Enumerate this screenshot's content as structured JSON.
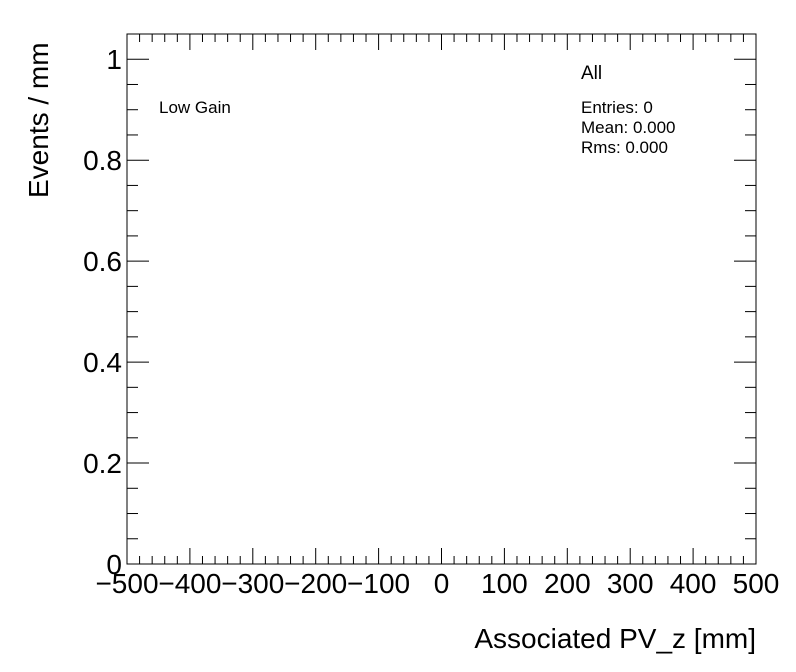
{
  "chart_data": {
    "type": "bar",
    "xlabel": "Associated PV_z [mm]",
    "ylabel": "Events / mm",
    "xlim": [
      -500,
      500
    ],
    "ylim": [
      0,
      1.05
    ],
    "x_ticks": [
      -500,
      -400,
      -300,
      -200,
      -100,
      0,
      100,
      200,
      300,
      400,
      500
    ],
    "x_tick_labels": [
      "−500",
      "−400",
      "−300",
      "−200",
      "−100",
      "0",
      "100",
      "200",
      "300",
      "400",
      "500"
    ],
    "y_ticks": [
      0,
      0.2,
      0.4,
      0.6,
      0.8,
      1
    ],
    "y_tick_labels": [
      "0",
      "0.2",
      "0.4",
      "0.6",
      "0.8",
      "1"
    ],
    "series": [
      {
        "name": "All",
        "values": []
      }
    ],
    "annotations": {
      "label": "Low Gain",
      "legend_title": "All",
      "stats": [
        "Entries: 0",
        "Mean: 0.000",
        "Rms: 0.000"
      ]
    },
    "grid": false,
    "legend_placement": "top-right"
  }
}
